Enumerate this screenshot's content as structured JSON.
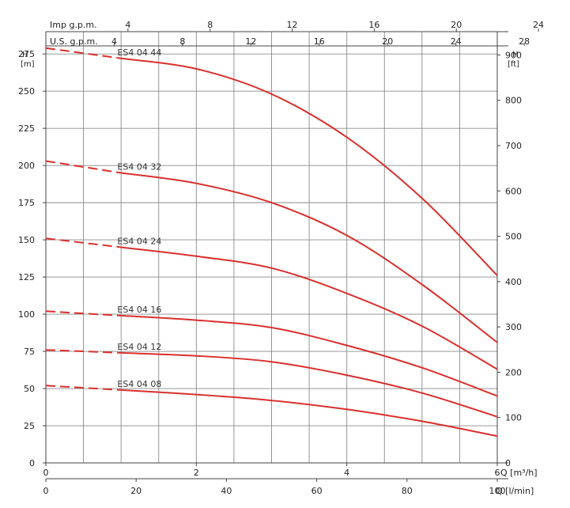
{
  "chart_data": {
    "type": "line",
    "title": "",
    "grid": true,
    "x_primary": {
      "label": "Q [m³/h]",
      "range": [
        0,
        6
      ],
      "ticks": [
        0,
        2,
        4,
        6
      ]
    },
    "x_secondary_lmin": {
      "label": "Q [l/min]",
      "range": [
        0,
        100
      ],
      "ticks": [
        0,
        20,
        40,
        60,
        80,
        100
      ]
    },
    "x_top_us_gpm": {
      "label": "U.S. g.p.m.",
      "ticks": [
        4,
        8,
        12,
        16,
        20,
        24,
        28
      ]
    },
    "x_top_imp_gpm": {
      "label": "Imp g.p.m.",
      "ticks": [
        4,
        8,
        12,
        16,
        20,
        24
      ]
    },
    "y_left": {
      "label_top": "H",
      "label_unit": "[m]",
      "range": [
        0,
        290
      ],
      "ticks": [
        0,
        25,
        50,
        75,
        100,
        125,
        150,
        175,
        200,
        225,
        250,
        275
      ]
    },
    "y_right": {
      "label_top": "H",
      "label_unit": "[ft]",
      "ticks": [
        0,
        100,
        200,
        300,
        400,
        500,
        600,
        700,
        800,
        900
      ]
    },
    "series": [
      {
        "name": "ES4 04 44",
        "color": "#d9302c",
        "dashed_until_x": 1.0,
        "points": [
          [
            0,
            279
          ],
          [
            1,
            272
          ],
          [
            2,
            265
          ],
          [
            3,
            248
          ],
          [
            4,
            219
          ],
          [
            5,
            178
          ],
          [
            6,
            126
          ]
        ]
      },
      {
        "name": "ES4 04 32",
        "color": "#d9302c",
        "dashed_until_x": 1.0,
        "points": [
          [
            0,
            203
          ],
          [
            1,
            195
          ],
          [
            2,
            188
          ],
          [
            3,
            175
          ],
          [
            4,
            153
          ],
          [
            5,
            120
          ],
          [
            6,
            81
          ]
        ]
      },
      {
        "name": "ES4 04 24",
        "color": "#d9302c",
        "dashed_until_x": 1.0,
        "points": [
          [
            0,
            151
          ],
          [
            1,
            145
          ],
          [
            2,
            139
          ],
          [
            3,
            131
          ],
          [
            4,
            114
          ],
          [
            5,
            92
          ],
          [
            6,
            63
          ]
        ]
      },
      {
        "name": "ES4 04 16",
        "color": "#d9302c",
        "dashed_until_x": 1.0,
        "points": [
          [
            0,
            102
          ],
          [
            1,
            99
          ],
          [
            2,
            96
          ],
          [
            3,
            91
          ],
          [
            4,
            79
          ],
          [
            5,
            64
          ],
          [
            6,
            45
          ]
        ]
      },
      {
        "name": "ES4 04 12",
        "color": "#d9302c",
        "dashed_until_x": 1.0,
        "points": [
          [
            0,
            76
          ],
          [
            1,
            74
          ],
          [
            2,
            72
          ],
          [
            3,
            68
          ],
          [
            4,
            59
          ],
          [
            5,
            47
          ],
          [
            6,
            31
          ]
        ]
      },
      {
        "name": "ES4 04 08",
        "color": "#d9302c",
        "dashed_until_x": 1.0,
        "points": [
          [
            0,
            52
          ],
          [
            1,
            49
          ],
          [
            2,
            46
          ],
          [
            3,
            42
          ],
          [
            4,
            36
          ],
          [
            5,
            28
          ],
          [
            6,
            18
          ]
        ]
      }
    ]
  }
}
